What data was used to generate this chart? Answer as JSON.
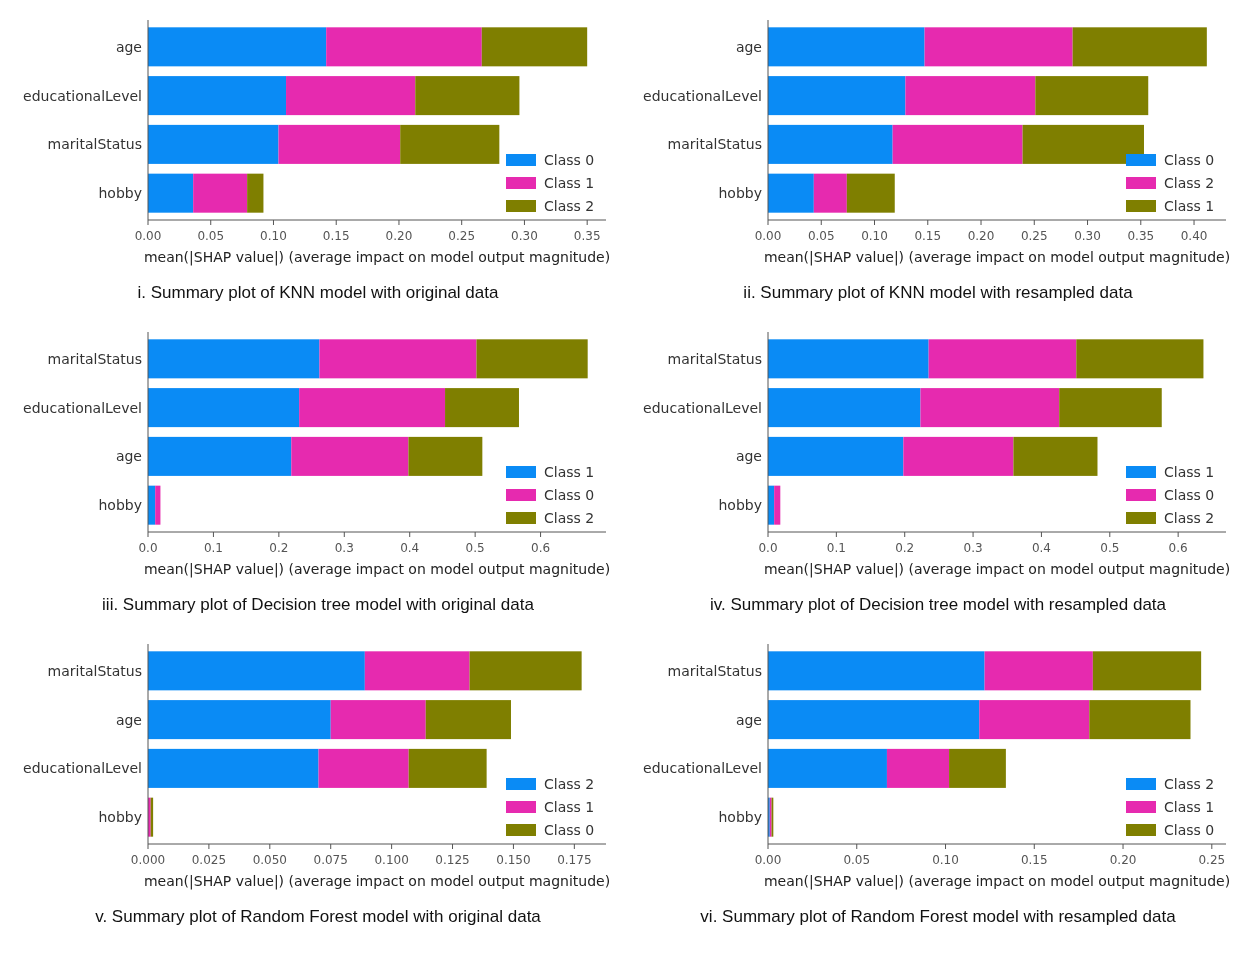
{
  "chart_data": [
    {
      "type": "bar",
      "orientation": "horizontal",
      "stacked": true,
      "categories": [
        "age",
        "educationalLevel",
        "maritalStatus",
        "hobby"
      ],
      "xlabel": "mean(|SHAP value|) (average impact on model output magnitude)",
      "xlim": [
        0,
        0.365
      ],
      "xticks": [
        {
          "value": 0,
          "label": "0.00"
        },
        {
          "value": 0.05,
          "label": "0.05"
        },
        {
          "value": 0.1,
          "label": "0.10"
        },
        {
          "value": 0.15,
          "label": "0.15"
        },
        {
          "value": 0.2,
          "label": "0.20"
        },
        {
          "value": 0.25,
          "label": "0.25"
        },
        {
          "value": 0.3,
          "label": "0.30"
        },
        {
          "value": 0.35,
          "label": "0.35"
        }
      ],
      "legend": "bottom right",
      "annotations": [
        "i. Summary plot of KNN model with original data"
      ],
      "series": [
        {
          "name": "Class 0",
          "color": "#0a8bf5",
          "values": [
            0.142,
            0.11,
            0.104,
            0.036
          ]
        },
        {
          "name": "Class 1",
          "color": "#e62aaf",
          "values": [
            0.124,
            0.103,
            0.097,
            0.043
          ]
        },
        {
          "name": "Class 2",
          "color": "#7f7f00",
          "values": [
            0.084,
            0.083,
            0.079,
            0.013
          ]
        }
      ]
    },
    {
      "type": "bar",
      "orientation": "horizontal",
      "stacked": true,
      "categories": [
        "age",
        "educationalLevel",
        "maritalStatus",
        "hobby"
      ],
      "xlabel": "mean(|SHAP value|) (average impact on model output magnitude)",
      "xlim": [
        0,
        0.43
      ],
      "xticks": [
        {
          "value": 0,
          "label": "0.00"
        },
        {
          "value": 0.05,
          "label": "0.05"
        },
        {
          "value": 0.1,
          "label": "0.10"
        },
        {
          "value": 0.15,
          "label": "0.15"
        },
        {
          "value": 0.2,
          "label": "0.20"
        },
        {
          "value": 0.25,
          "label": "0.25"
        },
        {
          "value": 0.3,
          "label": "0.30"
        },
        {
          "value": 0.35,
          "label": "0.35"
        },
        {
          "value": 0.4,
          "label": "0.40"
        }
      ],
      "legend": "bottom right",
      "annotations": [
        "ii. Summary plot of KNN model with resampled data"
      ],
      "series": [
        {
          "name": "Class 0",
          "color": "#0a8bf5",
          "values": [
            0.147,
            0.129,
            0.117,
            0.043
          ]
        },
        {
          "name": "Class 2",
          "color": "#e62aaf",
          "values": [
            0.139,
            0.122,
            0.122,
            0.031
          ]
        },
        {
          "name": "Class 1",
          "color": "#7f7f00",
          "values": [
            0.126,
            0.106,
            0.114,
            0.045
          ]
        }
      ]
    },
    {
      "type": "bar",
      "orientation": "horizontal",
      "stacked": true,
      "categories": [
        "maritalStatus",
        "educationalLevel",
        "age",
        "hobby"
      ],
      "xlabel": "mean(|SHAP value|) (average impact on model output magnitude)",
      "xlim": [
        0,
        0.7
      ],
      "xticks": [
        {
          "value": 0,
          "label": "0.0"
        },
        0.1,
        0.2,
        0.3,
        0.4,
        0.5,
        0.6
      ],
      "legend": "bottom right",
      "annotations": [
        "iii. Summary plot of Decision tree model with original data"
      ],
      "series": [
        {
          "name": "Class 1",
          "color": "#0a8bf5",
          "values": [
            0.262,
            0.231,
            0.219,
            0.011
          ]
        },
        {
          "name": "Class 0",
          "color": "#e62aaf",
          "values": [
            0.24,
            0.223,
            0.179,
            0.008
          ]
        },
        {
          "name": "Class 2",
          "color": "#7f7f00",
          "values": [
            0.17,
            0.113,
            0.113,
            0
          ]
        }
      ]
    },
    {
      "type": "bar",
      "orientation": "horizontal",
      "stacked": true,
      "categories": [
        "maritalStatus",
        "educationalLevel",
        "age",
        "hobby"
      ],
      "xlabel": "mean(|SHAP value|) (average impact on model output magnitude)",
      "xlim": [
        0,
        0.67
      ],
      "xticks": [
        {
          "value": 0,
          "label": "0.0"
        },
        0.1,
        0.2,
        0.3,
        0.4,
        0.5,
        0.6
      ],
      "legend": "bottom right",
      "annotations": [
        "iv. Summary plot of Decision tree model with resampled data"
      ],
      "series": [
        {
          "name": "Class 1",
          "color": "#0a8bf5",
          "values": [
            0.235,
            0.223,
            0.198,
            0.009
          ]
        },
        {
          "name": "Class 0",
          "color": "#e62aaf",
          "values": [
            0.216,
            0.203,
            0.161,
            0.009
          ]
        },
        {
          "name": "Class 2",
          "color": "#7f7f00",
          "values": [
            0.186,
            0.15,
            0.123,
            0
          ]
        }
      ]
    },
    {
      "type": "bar",
      "orientation": "horizontal",
      "stacked": true,
      "categories": [
        "maritalStatus",
        "age",
        "educationalLevel",
        "hobby"
      ],
      "xlabel": "mean(|SHAP value|) (average impact on model output magnitude)",
      "xlim": [
        0,
        0.188
      ],
      "xticks": [
        {
          "value": 0,
          "label": "0.000"
        },
        0.025,
        {
          "value": 0.05,
          "label": "0.050"
        },
        0.075,
        {
          "value": 0.1,
          "label": "0.100"
        },
        0.125,
        {
          "value": 0.15,
          "label": "0.150"
        },
        0.175
      ],
      "legend": "bottom right",
      "annotations": [
        "v. Summary plot of Random Forest model with original data"
      ],
      "series": [
        {
          "name": "Class 2",
          "color": "#0a8bf5",
          "values": [
            0.089,
            0.075,
            0.07,
            null
          ]
        },
        {
          "name": "Class 1",
          "color": "#e62aaf",
          "values": [
            0.043,
            0.039,
            0.037,
            0.0011
          ]
        },
        {
          "name": "Class 0",
          "color": "#7f7f00",
          "values": [
            0.046,
            0.035,
            0.032,
            0.001
          ]
        }
      ]
    },
    {
      "type": "bar",
      "orientation": "horizontal",
      "stacked": true,
      "categories": [
        "maritalStatus",
        "age",
        "educationalLevel",
        "hobby"
      ],
      "xlabel": "mean(|SHAP value|) (average impact on model output magnitude)",
      "xlim": [
        0,
        0.258
      ],
      "xticks": [
        {
          "value": 0,
          "label": "0.00"
        },
        0.05,
        {
          "value": 0.1,
          "label": "0.10"
        },
        0.15,
        {
          "value": 0.2,
          "label": "0.20"
        },
        0.25
      ],
      "legend": "bottom right",
      "annotations": [
        "vi. Summary plot of Random Forest model with resampled data"
      ],
      "series": [
        {
          "name": "Class 2",
          "color": "#0a8bf5",
          "values": [
            0.122,
            0.119,
            0.067,
            0.001
          ]
        },
        {
          "name": "Class 1",
          "color": "#e62aaf",
          "values": [
            0.061,
            0.062,
            0.035,
            0.001
          ]
        },
        {
          "name": "Class 0",
          "color": "#7f7f00",
          "values": [
            0.061,
            0.057,
            0.032,
            0.001
          ]
        }
      ]
    }
  ]
}
